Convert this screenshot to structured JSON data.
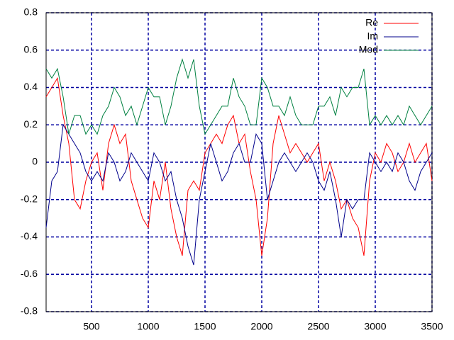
{
  "chart_data": {
    "type": "line",
    "x": [
      100,
      150,
      200,
      250,
      300,
      350,
      400,
      450,
      500,
      550,
      600,
      650,
      700,
      750,
      800,
      850,
      900,
      950,
      1000,
      1050,
      1100,
      1150,
      1200,
      1250,
      1300,
      1350,
      1400,
      1450,
      1500,
      1550,
      1600,
      1650,
      1700,
      1750,
      1800,
      1850,
      1900,
      1950,
      2000,
      2050,
      2100,
      2150,
      2200,
      2250,
      2300,
      2350,
      2400,
      2450,
      2500,
      2550,
      2600,
      2650,
      2700,
      2750,
      2800,
      2850,
      2900,
      2950,
      3000,
      3050,
      3100,
      3150,
      3200,
      3250,
      3300,
      3350,
      3400,
      3450,
      3500
    ],
    "series": [
      {
        "name": "Re",
        "color": "#ff0000",
        "values": [
          0.35,
          0.4,
          0.45,
          0.25,
          0.1,
          -0.2,
          -0.25,
          -0.1,
          0.0,
          0.05,
          -0.15,
          0.1,
          0.2,
          0.1,
          0.15,
          -0.1,
          -0.2,
          -0.3,
          -0.35,
          -0.1,
          -0.2,
          0.0,
          -0.25,
          -0.4,
          -0.5,
          -0.15,
          -0.1,
          -0.15,
          0.05,
          0.1,
          0.15,
          0.1,
          0.2,
          0.25,
          0.1,
          0.15,
          -0.05,
          -0.2,
          -0.5,
          -0.3,
          0.1,
          0.25,
          0.15,
          0.05,
          0.1,
          0.05,
          0.0,
          0.05,
          0.1,
          -0.1,
          0.0,
          -0.1,
          -0.25,
          -0.2,
          -0.3,
          -0.35,
          -0.5,
          -0.1,
          0.05,
          0.0,
          0.1,
          0.05,
          -0.05,
          0.0,
          0.1,
          0.0,
          0.05,
          0.1,
          -0.1
        ]
      },
      {
        "name": "Im",
        "color": "#00008b",
        "values": [
          -0.35,
          -0.1,
          -0.05,
          0.2,
          0.15,
          0.1,
          0.05,
          -0.05,
          -0.1,
          -0.05,
          -0.1,
          0.05,
          0.0,
          -0.1,
          -0.05,
          0.05,
          0.0,
          -0.05,
          -0.1,
          0.05,
          0.0,
          -0.1,
          -0.05,
          -0.2,
          -0.3,
          -0.45,
          -0.55,
          -0.2,
          -0.05,
          0.1,
          0.0,
          -0.1,
          -0.05,
          0.05,
          0.1,
          0.0,
          0.0,
          0.15,
          0.1,
          -0.2,
          -0.1,
          0.0,
          0.05,
          0.0,
          -0.05,
          0.0,
          0.05,
          0.0,
          -0.1,
          -0.15,
          -0.05,
          -0.2,
          -0.4,
          -0.2,
          -0.25,
          -0.2,
          -0.2,
          0.05,
          0.0,
          -0.05,
          0.0,
          -0.05,
          0.05,
          0.0,
          -0.1,
          -0.15,
          -0.05,
          0.0,
          0.05
        ]
      },
      {
        "name": "Mod",
        "color": "#008040",
        "values": [
          0.5,
          0.45,
          0.5,
          0.35,
          0.15,
          0.25,
          0.25,
          0.15,
          0.2,
          0.15,
          0.25,
          0.3,
          0.4,
          0.35,
          0.25,
          0.3,
          0.2,
          0.3,
          0.4,
          0.35,
          0.35,
          0.2,
          0.3,
          0.45,
          0.55,
          0.45,
          0.55,
          0.3,
          0.15,
          0.2,
          0.25,
          0.3,
          0.3,
          0.45,
          0.35,
          0.3,
          0.2,
          0.2,
          0.45,
          0.4,
          0.3,
          0.3,
          0.25,
          0.35,
          0.25,
          0.2,
          0.2,
          0.2,
          0.3,
          0.3,
          0.35,
          0.25,
          0.4,
          0.35,
          0.4,
          0.4,
          0.5,
          0.2,
          0.25,
          0.2,
          0.25,
          0.2,
          0.25,
          0.2,
          0.3,
          0.25,
          0.2,
          0.25,
          0.3
        ]
      }
    ],
    "xlim": [
      100,
      3500
    ],
    "xticks": [
      500,
      1000,
      1500,
      2000,
      2500,
      3000,
      3500
    ],
    "ylim": [
      -0.8,
      0.8
    ],
    "yticks": [
      -0.8,
      -0.6,
      -0.4,
      -0.2,
      0,
      0.2,
      0.4,
      0.6,
      0.8
    ],
    "grid": true,
    "legend": "top-right"
  }
}
